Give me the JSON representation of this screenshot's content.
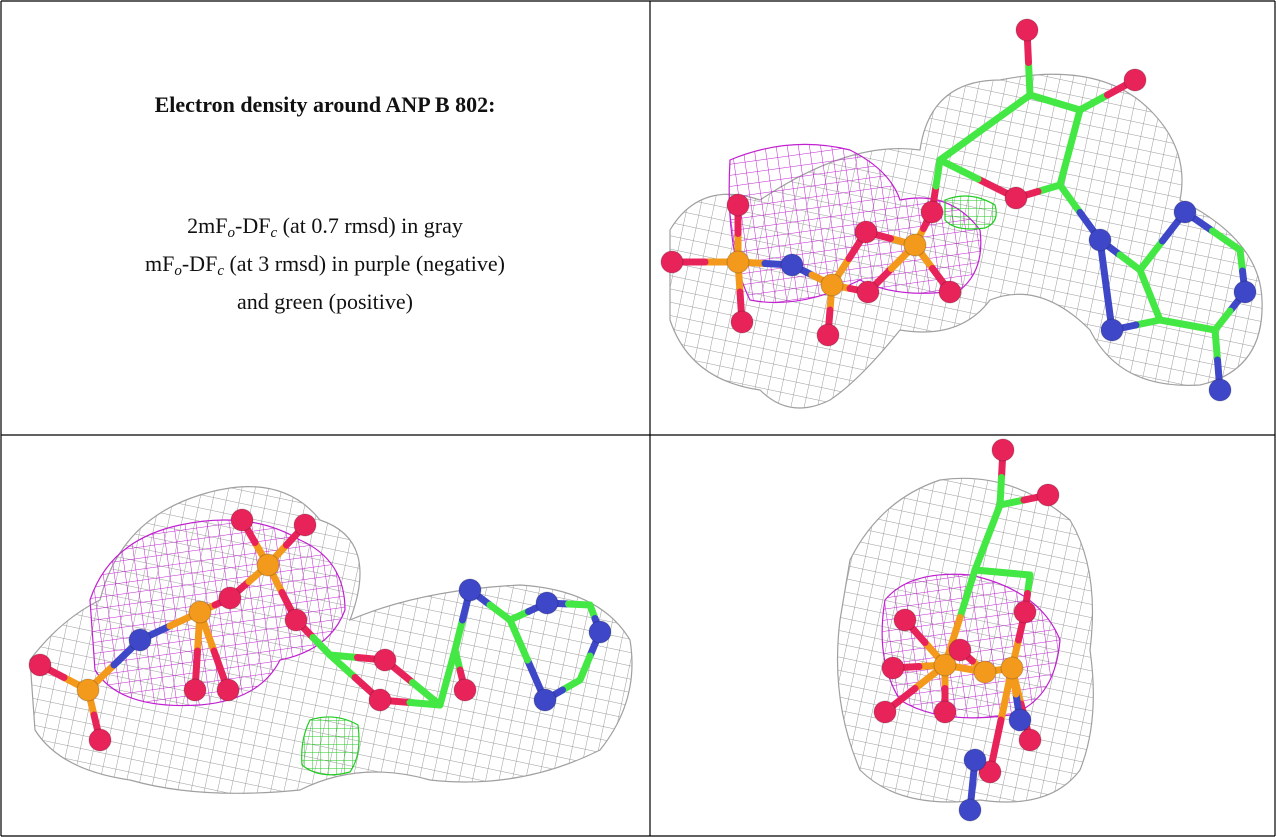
{
  "caption": {
    "title": "Electron density around ANP B 802:",
    "lines": [
      [
        {
          "text": "2mF"
        },
        {
          "text": "o",
          "sub": true
        },
        {
          "text": "-DF"
        },
        {
          "text": "c",
          "sub": true
        },
        {
          "text": " (at 0.7 rmsd) in gray"
        }
      ],
      [
        {
          "text": "mF"
        },
        {
          "text": "o",
          "sub": true
        },
        {
          "text": "-DF"
        },
        {
          "text": "c",
          "sub": true
        },
        {
          "text": " (at 3 rmsd) in purple (negative)"
        }
      ],
      [
        {
          "text": "and green (positive)"
        }
      ]
    ]
  }
}
